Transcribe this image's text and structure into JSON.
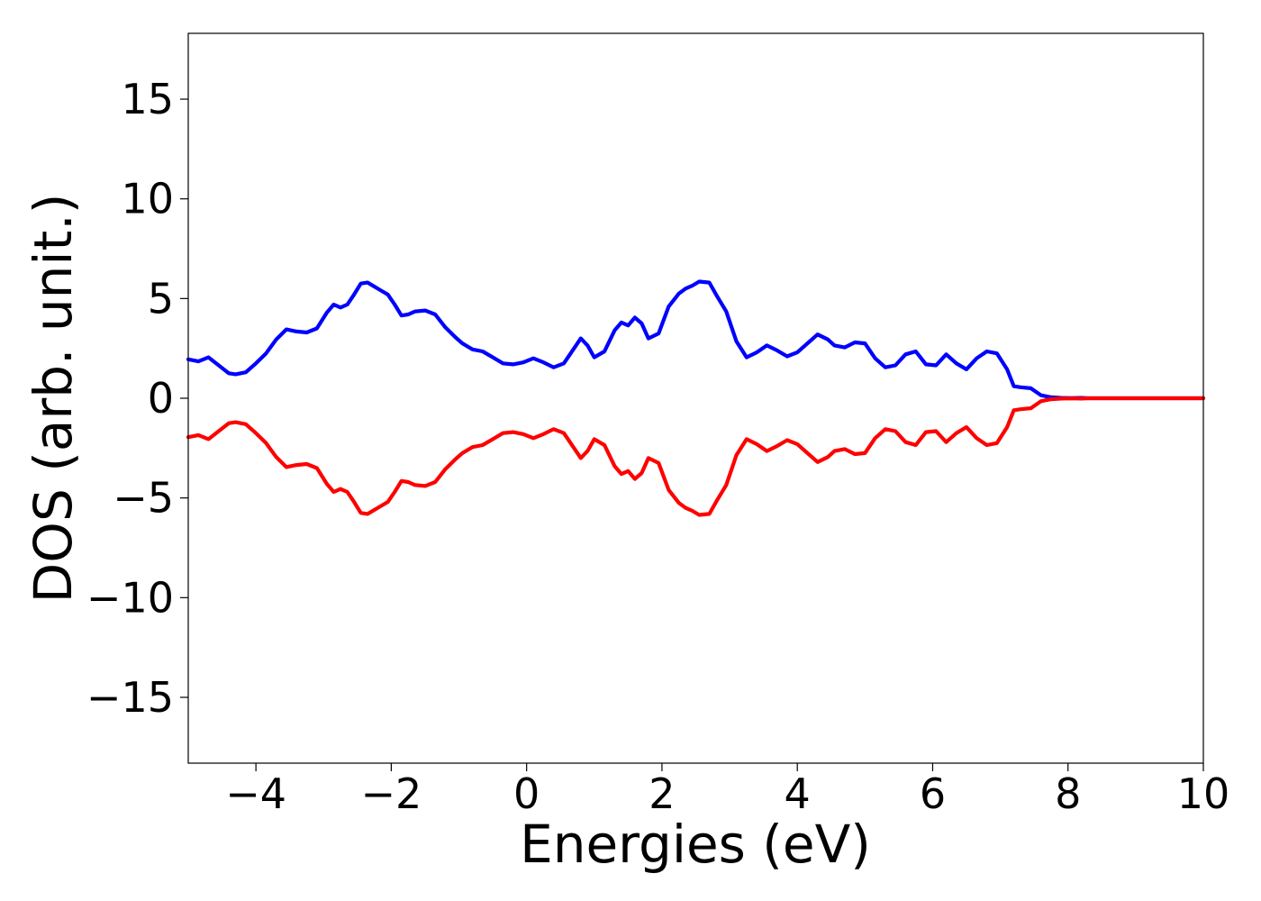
{
  "chart_data": {
    "type": "line",
    "xlabel": "Energies (eV)",
    "ylabel": "DOS (arb. unit.)",
    "xlim": [
      -5,
      10
    ],
    "ylim": [
      -18.3,
      18.3
    ],
    "xticks": [
      -4,
      -2,
      0,
      2,
      4,
      6,
      8,
      10
    ],
    "xtick_labels": [
      "−4",
      "−2",
      "0",
      "2",
      "4",
      "6",
      "8",
      "10"
    ],
    "yticks": [
      15,
      10,
      5,
      0,
      -5,
      -10,
      -15
    ],
    "ytick_labels": [
      "15",
      "10",
      "5",
      "0",
      "−5",
      "−10",
      "−15"
    ],
    "grid": false,
    "series": [
      {
        "color": "#0000ff",
        "x": [
          -5.0,
          -4.85,
          -4.7,
          -4.55,
          -4.4,
          -4.3,
          -4.15,
          -4.0,
          -3.85,
          -3.7,
          -3.55,
          -3.4,
          -3.25,
          -3.1,
          -2.95,
          -2.85,
          -2.75,
          -2.65,
          -2.55,
          -2.45,
          -2.35,
          -2.25,
          -2.15,
          -2.05,
          -1.95,
          -1.85,
          -1.75,
          -1.65,
          -1.5,
          -1.35,
          -1.2,
          -1.05,
          -0.95,
          -0.8,
          -0.65,
          -0.5,
          -0.35,
          -0.2,
          -0.05,
          0.1,
          0.25,
          0.4,
          0.55,
          0.7,
          0.8,
          0.9,
          1.0,
          1.15,
          1.3,
          1.4,
          1.5,
          1.6,
          1.7,
          1.8,
          1.95,
          2.1,
          2.25,
          2.35,
          2.45,
          2.55,
          2.7,
          2.8,
          2.95,
          3.1,
          3.25,
          3.4,
          3.55,
          3.7,
          3.85,
          4.0,
          4.15,
          4.3,
          4.45,
          4.55,
          4.7,
          4.85,
          5.0,
          5.15,
          5.3,
          5.45,
          5.6,
          5.75,
          5.9,
          6.05,
          6.2,
          6.35,
          6.5,
          6.65,
          6.8,
          6.95,
          7.1,
          7.2,
          7.3,
          7.45,
          7.6,
          7.75,
          7.9,
          8.05,
          8.2,
          8.3,
          8.45,
          8.6,
          8.75,
          8.9,
          9.05,
          9.2,
          9.35,
          9.5,
          9.65,
          9.8,
          10.0
        ],
        "y": [
          1.95,
          1.85,
          2.05,
          1.65,
          1.25,
          1.2,
          1.3,
          1.75,
          2.25,
          2.95,
          3.45,
          3.35,
          3.3,
          3.5,
          4.3,
          4.7,
          4.55,
          4.7,
          5.2,
          5.75,
          5.8,
          5.6,
          5.4,
          5.2,
          4.7,
          4.15,
          4.2,
          4.35,
          4.4,
          4.2,
          3.55,
          3.05,
          2.75,
          2.45,
          2.35,
          2.05,
          1.75,
          1.7,
          1.8,
          2.0,
          1.8,
          1.55,
          1.75,
          2.5,
          3.0,
          2.65,
          2.05,
          2.35,
          3.4,
          3.8,
          3.65,
          4.05,
          3.75,
          3.0,
          3.25,
          4.6,
          5.25,
          5.5,
          5.65,
          5.85,
          5.8,
          5.2,
          4.35,
          2.85,
          2.05,
          2.3,
          2.65,
          2.4,
          2.1,
          2.3,
          2.75,
          3.2,
          2.95,
          2.65,
          2.55,
          2.8,
          2.75,
          2.0,
          1.55,
          1.65,
          2.2,
          2.35,
          1.7,
          1.65,
          2.2,
          1.75,
          1.45,
          2.0,
          2.35,
          2.25,
          1.45,
          0.6,
          0.55,
          0.5,
          0.15,
          0.05,
          0.02,
          0.01,
          0.02,
          0.0,
          0.0,
          0.0,
          0.0,
          0.0,
          0.0,
          0.0,
          0.0,
          0.0,
          0.0,
          0.0,
          0.0
        ]
      },
      {
        "color": "#ff0000",
        "x": [
          -5.0,
          -4.85,
          -4.7,
          -4.55,
          -4.4,
          -4.3,
          -4.15,
          -4.0,
          -3.85,
          -3.7,
          -3.55,
          -3.4,
          -3.25,
          -3.1,
          -2.95,
          -2.85,
          -2.75,
          -2.65,
          -2.55,
          -2.45,
          -2.35,
          -2.25,
          -2.15,
          -2.05,
          -1.95,
          -1.85,
          -1.75,
          -1.65,
          -1.5,
          -1.35,
          -1.2,
          -1.05,
          -0.95,
          -0.8,
          -0.65,
          -0.5,
          -0.35,
          -0.2,
          -0.05,
          0.1,
          0.25,
          0.4,
          0.55,
          0.7,
          0.8,
          0.9,
          1.0,
          1.15,
          1.3,
          1.4,
          1.5,
          1.6,
          1.7,
          1.8,
          1.95,
          2.1,
          2.25,
          2.35,
          2.45,
          2.55,
          2.7,
          2.8,
          2.95,
          3.1,
          3.25,
          3.4,
          3.55,
          3.7,
          3.85,
          4.0,
          4.15,
          4.3,
          4.45,
          4.55,
          4.7,
          4.85,
          5.0,
          5.15,
          5.3,
          5.45,
          5.6,
          5.75,
          5.9,
          6.05,
          6.2,
          6.35,
          6.5,
          6.65,
          6.8,
          6.95,
          7.1,
          7.2,
          7.3,
          7.45,
          7.6,
          7.75,
          7.9,
          8.05,
          8.2,
          8.3,
          8.45,
          8.6,
          8.75,
          8.9,
          9.05,
          9.2,
          9.35,
          9.5,
          9.65,
          9.8,
          10.0
        ],
        "y": [
          -1.95,
          -1.85,
          -2.05,
          -1.65,
          -1.25,
          -1.2,
          -1.3,
          -1.75,
          -2.25,
          -2.95,
          -3.45,
          -3.35,
          -3.3,
          -3.5,
          -4.3,
          -4.7,
          -4.55,
          -4.7,
          -5.2,
          -5.75,
          -5.8,
          -5.6,
          -5.4,
          -5.2,
          -4.7,
          -4.15,
          -4.2,
          -4.35,
          -4.4,
          -4.2,
          -3.55,
          -3.05,
          -2.75,
          -2.45,
          -2.35,
          -2.05,
          -1.75,
          -1.7,
          -1.8,
          -2.0,
          -1.8,
          -1.55,
          -1.75,
          -2.5,
          -3.0,
          -2.65,
          -2.05,
          -2.35,
          -3.4,
          -3.8,
          -3.65,
          -4.05,
          -3.75,
          -3.0,
          -3.25,
          -4.6,
          -5.25,
          -5.5,
          -5.65,
          -5.85,
          -5.8,
          -5.2,
          -4.35,
          -2.85,
          -2.05,
          -2.3,
          -2.65,
          -2.4,
          -2.1,
          -2.3,
          -2.75,
          -3.2,
          -2.95,
          -2.65,
          -2.55,
          -2.8,
          -2.75,
          -2.0,
          -1.55,
          -1.65,
          -2.2,
          -2.35,
          -1.7,
          -1.65,
          -2.2,
          -1.75,
          -1.45,
          -2.0,
          -2.35,
          -2.25,
          -1.45,
          -0.6,
          -0.55,
          -0.5,
          -0.15,
          -0.05,
          -0.02,
          -0.01,
          -0.02,
          0.0,
          0.0,
          0.0,
          0.0,
          0.0,
          0.0,
          0.0,
          0.0,
          0.0,
          0.0,
          0.0,
          0.0
        ]
      }
    ]
  }
}
